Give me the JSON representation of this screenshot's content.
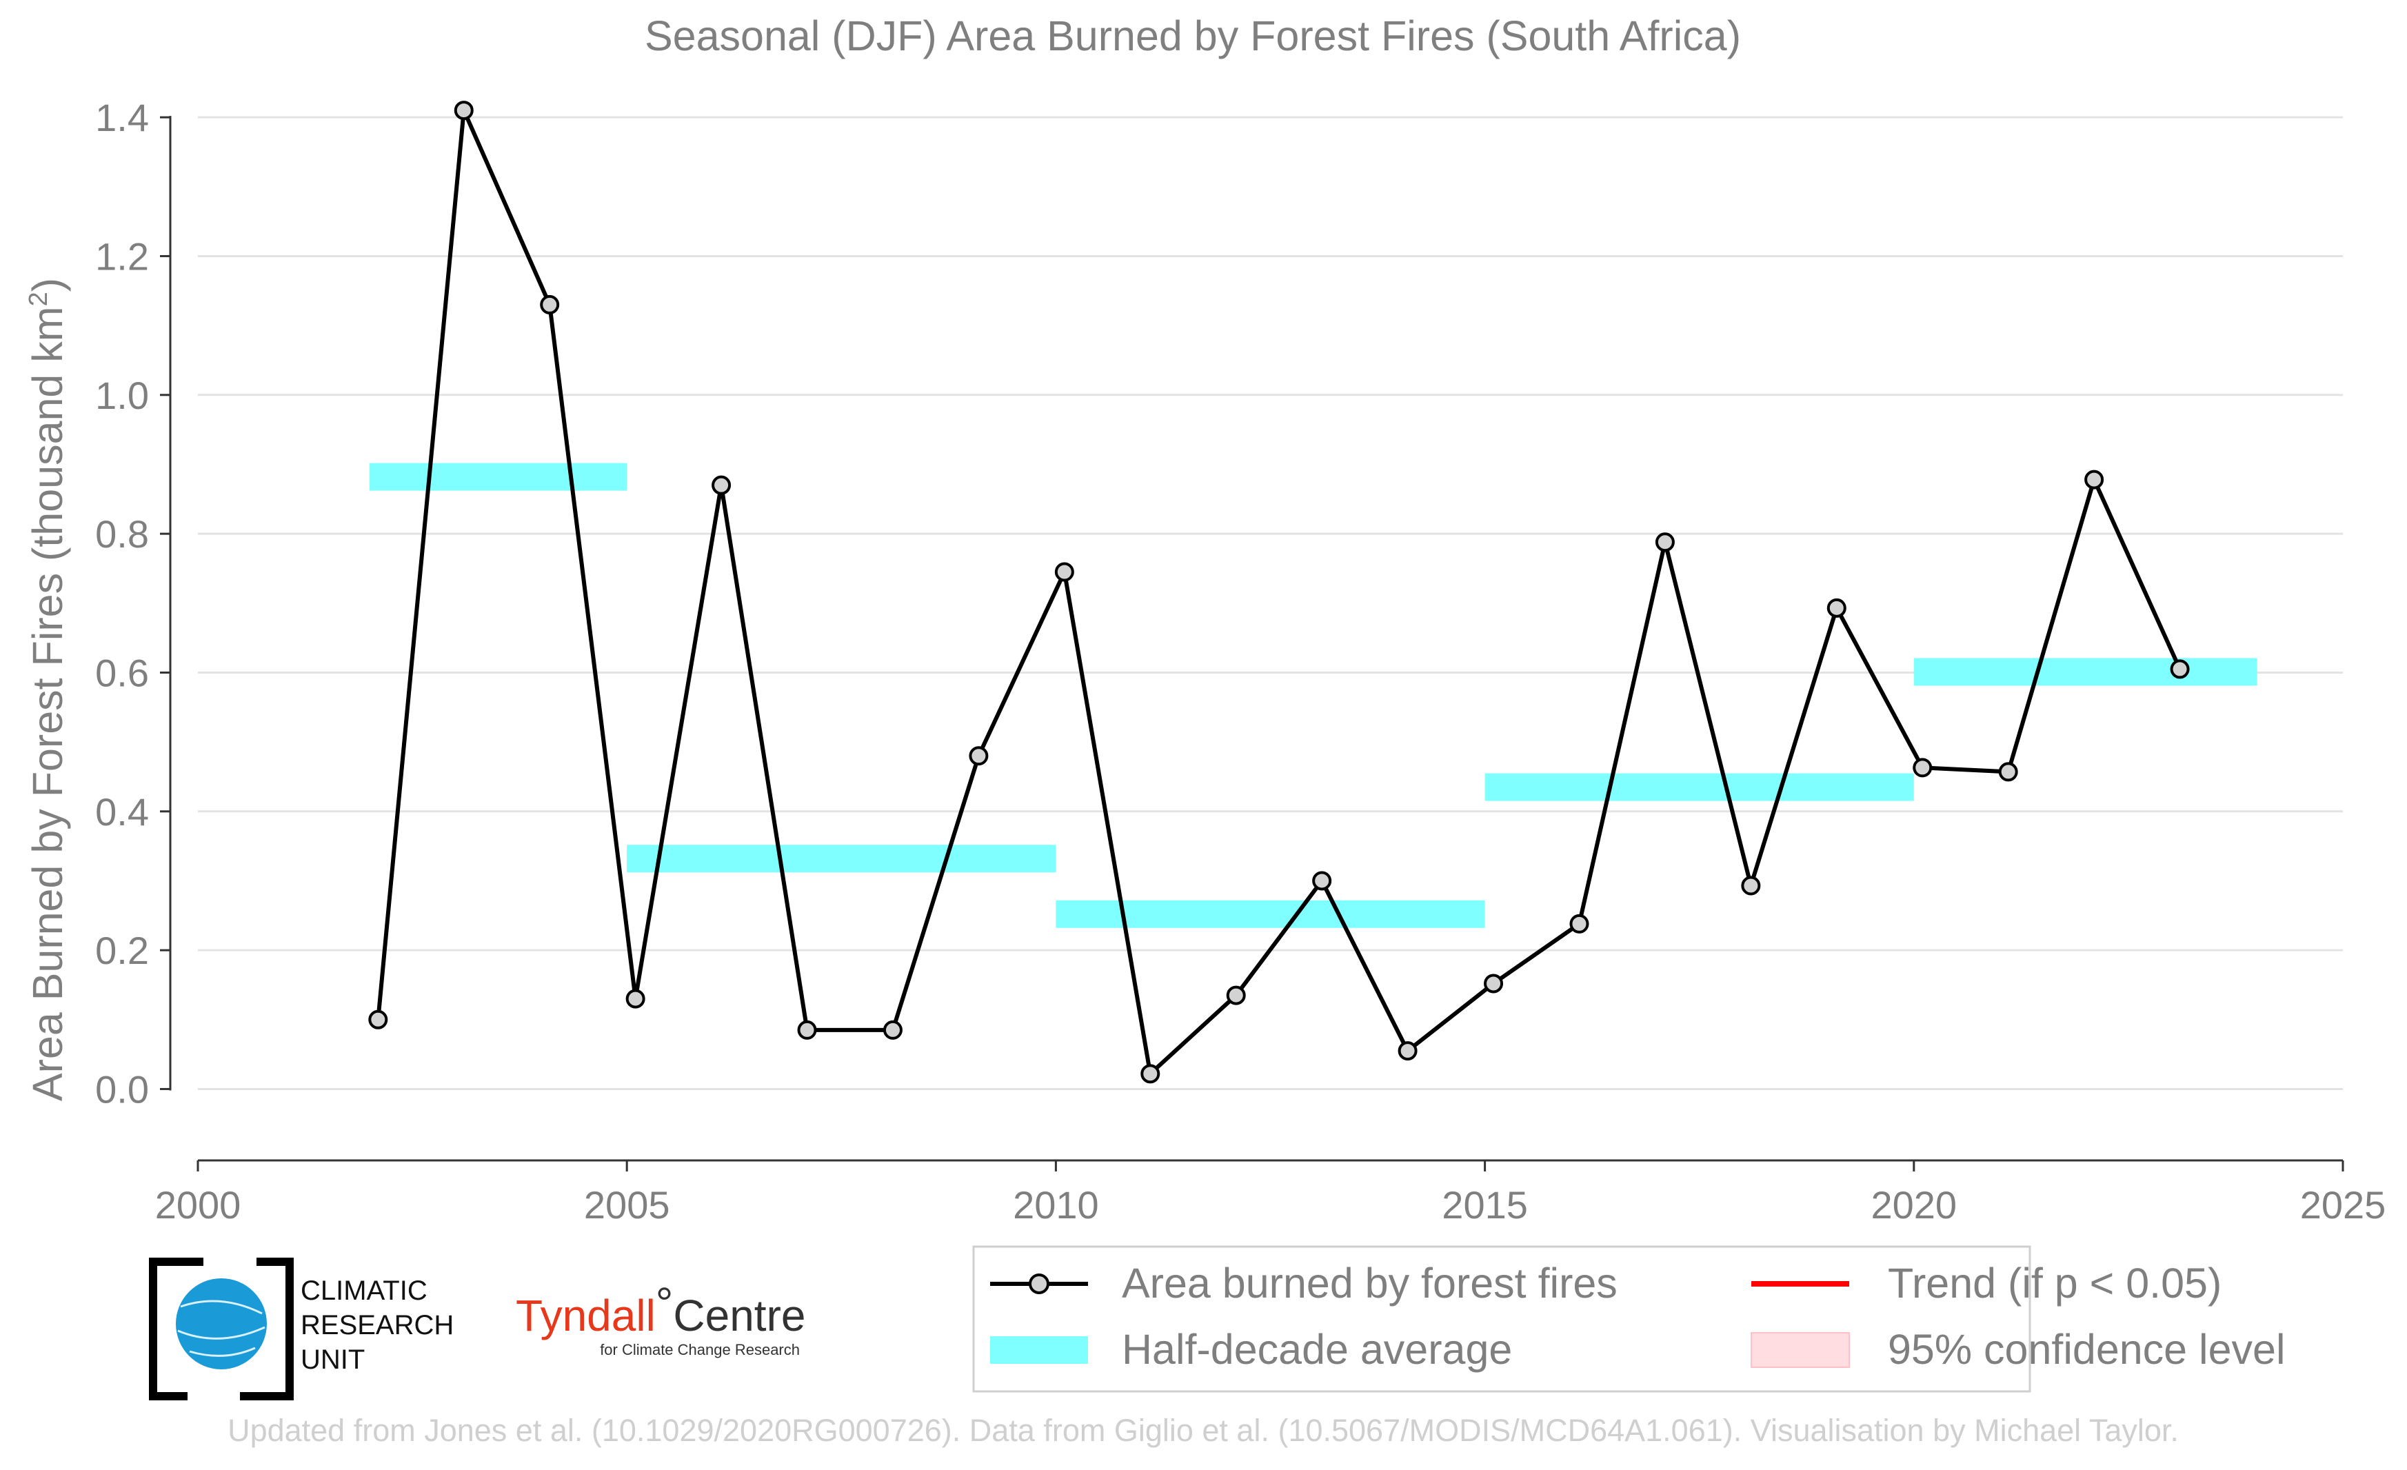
{
  "chart_data": {
    "type": "line",
    "title": "Seasonal (DJF) Area Burned by Forest Fires (South Africa)",
    "ylabel": "Area Burned by Forest Fires (thousand km",
    "ylabel_sup": "2",
    "ylabel_end": ")",
    "xlim": [
      2000,
      2025
    ],
    "ylim": [
      -0.08,
      1.42
    ],
    "x_ticks": [
      2000,
      2005,
      2010,
      2015,
      2020,
      2025
    ],
    "x_tick_labels": [
      "2000",
      "2005",
      "2010",
      "2015",
      "2020",
      "2025"
    ],
    "y_ticks": [
      0.0,
      0.2,
      0.4,
      0.6,
      0.8,
      1.0,
      1.2,
      1.4
    ],
    "y_tick_labels": [
      "0.0",
      "0.2",
      "0.4",
      "0.6",
      "0.8",
      "1.0",
      "1.2",
      "1.4"
    ],
    "grid": "horizontal",
    "legend_position": "bottom-right",
    "series": [
      {
        "name": "Area burned by forest fires",
        "color": "#000000",
        "marker_fill": "#d3d3d3",
        "x": [
          2002.1,
          2003.1,
          2004.1,
          2005.1,
          2006.1,
          2007.1,
          2008.1,
          2009.1,
          2010.1,
          2011.1,
          2012.1,
          2013.1,
          2014.1,
          2015.1,
          2016.1,
          2017.1,
          2018.1,
          2019.1,
          2020.1,
          2021.1,
          2022.1,
          2023.1
        ],
        "y": [
          0.1,
          1.41,
          1.13,
          0.13,
          0.87,
          0.085,
          0.085,
          0.48,
          0.745,
          0.022,
          0.135,
          0.3,
          0.055,
          0.152,
          0.238,
          0.788,
          0.293,
          0.693,
          0.463,
          0.457,
          0.878,
          0.605
        ]
      }
    ],
    "half_decade_average": {
      "name": "Half-decade average",
      "color": "#7fffff",
      "segments": [
        {
          "x0": 2002,
          "x1": 2005,
          "y": 0.882
        },
        {
          "x0": 2005,
          "x1": 2010,
          "y": 0.332
        },
        {
          "x0": 2010,
          "x1": 2015,
          "y": 0.252
        },
        {
          "x0": 2015,
          "x1": 2020,
          "y": 0.435
        },
        {
          "x0": 2020,
          "x1": 2024,
          "y": 0.601
        }
      ]
    },
    "legend": [
      {
        "label": "Area burned by forest fires",
        "kind": "line-marker",
        "color": "#000000"
      },
      {
        "label": "Trend (if p < 0.05)",
        "kind": "line",
        "color": "#ff0000"
      },
      {
        "label": "Half-decade average",
        "kind": "band",
        "color": "#7fffff"
      },
      {
        "label": "95% confidence level",
        "kind": "patch",
        "color": "#ffdde1"
      }
    ]
  },
  "logos": {
    "cru_lines": [
      "CLIMATIC",
      "RESEARCH",
      "UNIT"
    ],
    "tyndall_main_1": "Tyndall",
    "tyndall_degree": "°",
    "tyndall_main_2": "Centre",
    "tyndall_sub": "for Climate Change Research"
  },
  "credit": "Updated from Jones et al. (10.1029/2020RG000726). Data from Giglio et al. (10.5067/MODIS/MCD64A1.061). Visualisation by Michael Taylor."
}
